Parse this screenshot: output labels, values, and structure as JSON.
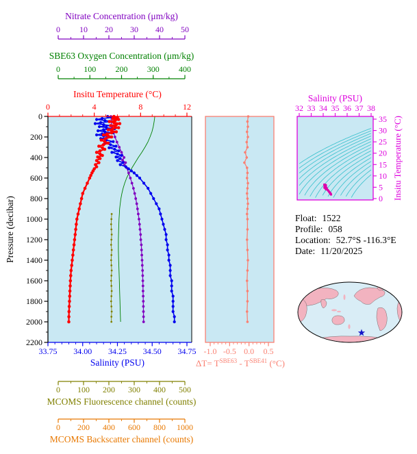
{
  "info": {
    "float_label": "Float:",
    "float_value": "1522",
    "profile_label": "Profile:",
    "profile_value": "058",
    "location_label": "Location:",
    "location_value": "52.7°S -116.3°E",
    "date_label": "Date:",
    "date_value": "11/20/2025"
  },
  "colors": {
    "plot_bg": "#c9e8f3",
    "temperature": "#ff0000",
    "salinity": "#0000ee",
    "nitrate": "#8000c0",
    "oxygen": "#008000",
    "fluorescence": "#808000",
    "backscatter": "#e87800",
    "delta_t": "#fa8072",
    "ts_axis": "#dd00dd",
    "ts_points": "#dd00aa",
    "ts_contours": "#35c0cc",
    "pressure_axis": "#000000",
    "map_land": "#f2b3c0",
    "map_ocean": "#d9edf6",
    "star": "#1515c8"
  },
  "chart_data": [
    {
      "id": "profiles",
      "type": "line",
      "ylabel": "Pressure (decibar)",
      "ylim": [
        0,
        2200
      ],
      "y_ticks": [
        0,
        200,
        400,
        600,
        800,
        1000,
        1200,
        1400,
        1600,
        1800,
        2000,
        2200
      ],
      "axes": [
        {
          "id": "nitrate",
          "label": "Nitrate Concentration (μm/kg)",
          "lim": [
            0,
            50
          ],
          "ticks": [
            0,
            10,
            20,
            30,
            40,
            50
          ],
          "tick_labels": [
            "0",
            "10",
            "20",
            "30",
            "40",
            "50"
          ]
        },
        {
          "id": "oxygen",
          "label": "SBE63 Oxygen Concentration (μm/kg)",
          "lim": [
            0,
            400
          ],
          "ticks": [
            0,
            100,
            200,
            300,
            400
          ],
          "tick_labels": [
            "0",
            "100",
            "200",
            "300",
            "400"
          ]
        },
        {
          "id": "temperature",
          "label": "Insitu Temperature (°C)",
          "lim": [
            0,
            12
          ],
          "ticks": [
            0,
            4,
            8,
            12
          ],
          "tick_labels": [
            "0",
            "4",
            "8",
            "12"
          ]
        },
        {
          "id": "salinity",
          "label": "Salinity (PSU)",
          "lim": [
            33.75,
            34.75
          ],
          "ticks": [
            33.75,
            34,
            34.25,
            34.5,
            34.75
          ],
          "tick_labels": [
            "33.75",
            "34.00",
            "34.25",
            "34.50",
            "34.75"
          ]
        },
        {
          "id": "fluorescence",
          "label": "MCOMS Fluorescence channel (counts)",
          "lim": [
            0,
            500
          ],
          "ticks": [
            0,
            100,
            200,
            300,
            400,
            500
          ],
          "tick_labels": [
            "0",
            "100",
            "200",
            "300",
            "400",
            "500"
          ]
        },
        {
          "id": "backscatter",
          "label": "MCOMS Backscatter channel (counts)",
          "lim": [
            0,
            1000
          ],
          "ticks": [
            0,
            200,
            400,
            600,
            800,
            1000
          ],
          "tick_labels": [
            "0",
            "200",
            "400",
            "600",
            "800",
            "1000"
          ]
        }
      ],
      "series": [
        {
          "name": "temperature",
          "axis": "temperature",
          "pressure": [
            0,
            10,
            20,
            30,
            40,
            50,
            60,
            70,
            80,
            90,
            100,
            110,
            120,
            130,
            140,
            150,
            160,
            170,
            180,
            190,
            200,
            215,
            230,
            245,
            260,
            275,
            290,
            305,
            320,
            335,
            350,
            365,
            380,
            395,
            410,
            430,
            450,
            470,
            490,
            510,
            530,
            550,
            575,
            600,
            650,
            700,
            750,
            800,
            850,
            900,
            950,
            1000,
            1050,
            1100,
            1150,
            1200,
            1250,
            1300,
            1350,
            1400,
            1450,
            1500,
            1550,
            1600,
            1650,
            1700,
            1750,
            1800,
            1850,
            1900,
            1950,
            2000
          ],
          "values": [
            5.7,
            6.0,
            5.6,
            6.1,
            5.8,
            5.3,
            5.7,
            6.2,
            5.9,
            5.4,
            5.8,
            6.1,
            5.6,
            5.2,
            5.5,
            5.9,
            5.5,
            5.1,
            4.8,
            5.2,
            5.5,
            5.0,
            4.6,
            4.9,
            5.2,
            4.8,
            4.4,
            4.7,
            4.9,
            4.5,
            4.2,
            4.5,
            4.7,
            4.3,
            4.5,
            4.2,
            4.4,
            4.1,
            4.2,
            4.0,
            3.9,
            3.8,
            3.7,
            3.6,
            3.4,
            3.2,
            3.0,
            2.9,
            2.8,
            2.7,
            2.6,
            2.5,
            2.45,
            2.4,
            2.35,
            2.3,
            2.25,
            2.2,
            2.15,
            2.1,
            2.05,
            2.0,
            1.97,
            1.94,
            1.92,
            1.9,
            1.88,
            1.86,
            1.84,
            1.82,
            1.81,
            1.8
          ]
        },
        {
          "name": "salinity",
          "axis": "salinity",
          "pressure": [
            0,
            10,
            20,
            30,
            40,
            50,
            60,
            70,
            80,
            90,
            100,
            110,
            120,
            130,
            140,
            150,
            160,
            170,
            180,
            190,
            200,
            215,
            230,
            245,
            260,
            275,
            290,
            305,
            320,
            335,
            350,
            365,
            380,
            395,
            410,
            430,
            450,
            470,
            490,
            510,
            530,
            550,
            575,
            600,
            650,
            700,
            750,
            800,
            850,
            900,
            950,
            1000,
            1050,
            1100,
            1150,
            1200,
            1250,
            1300,
            1350,
            1400,
            1450,
            1500,
            1550,
            1600,
            1650,
            1700,
            1750,
            1800,
            1850,
            1900,
            1950,
            2000
          ],
          "values": [
            34.18,
            34.22,
            34.14,
            34.1,
            34.16,
            34.21,
            34.13,
            34.09,
            34.15,
            34.2,
            34.12,
            34.17,
            34.23,
            34.15,
            34.11,
            34.16,
            34.22,
            34.14,
            34.1,
            34.15,
            34.2,
            34.13,
            34.17,
            34.22,
            34.16,
            34.2,
            34.24,
            34.19,
            34.23,
            34.26,
            34.21,
            34.25,
            34.28,
            34.24,
            34.27,
            34.25,
            34.29,
            34.27,
            34.31,
            34.33,
            34.35,
            34.37,
            34.39,
            34.41,
            34.44,
            34.47,
            34.49,
            34.51,
            34.53,
            34.55,
            34.56,
            34.57,
            34.58,
            34.59,
            34.6,
            34.6,
            34.61,
            34.61,
            34.62,
            34.62,
            34.63,
            34.63,
            34.63,
            34.64,
            34.64,
            34.64,
            34.65,
            34.65,
            34.65,
            34.65,
            34.66,
            34.66
          ]
        },
        {
          "name": "nitrate",
          "axis": "nitrate",
          "pressure": [
            0,
            50,
            100,
            150,
            200,
            250,
            300,
            350,
            400,
            425,
            450,
            475,
            500,
            550,
            600,
            650,
            700,
            750,
            800,
            850,
            900,
            950,
            1000,
            1050,
            1100,
            1150,
            1200,
            1250,
            1300,
            1350,
            1400,
            1450,
            1500,
            1550,
            1600,
            1650,
            1700,
            1750,
            1800,
            1850,
            1900,
            1950,
            2000
          ],
          "values": [
            20.8,
            20.9,
            21.2,
            21.8,
            22.4,
            23.2,
            24.1,
            25.0,
            26.0,
            25.4,
            26.6,
            26.1,
            27.0,
            27.8,
            28.5,
            29.1,
            29.7,
            30.2,
            30.6,
            31.0,
            31.3,
            31.6,
            31.9,
            32.1,
            32.3,
            32.5,
            32.6,
            32.8,
            32.9,
            33.0,
            33.1,
            33.2,
            33.3,
            33.35,
            33.4,
            33.45,
            33.5,
            33.55,
            33.6,
            33.62,
            33.65,
            33.68,
            33.7
          ]
        },
        {
          "name": "oxygen",
          "axis": "oxygen",
          "pressure": [
            0,
            50,
            100,
            150,
            200,
            250,
            300,
            350,
            400,
            450,
            500,
            550,
            600,
            650,
            700,
            750,
            800,
            850,
            900,
            950,
            1000,
            1100,
            1200,
            1300,
            1400,
            1500,
            1600,
            1700,
            1800,
            1900,
            2000
          ],
          "values": [
            305,
            303,
            300,
            296,
            290,
            283,
            274,
            264,
            253,
            243,
            233,
            224,
            216,
            210,
            205,
            201,
            198,
            196,
            194,
            193,
            192,
            191,
            190,
            190,
            191,
            192,
            193,
            194,
            195,
            196,
            197
          ]
        },
        {
          "name": "fluorescence",
          "axis": "fluorescence",
          "pressure": [
            950,
            1000,
            1050,
            1100,
            1150,
            1200,
            1250,
            1300,
            1350,
            1400,
            1450,
            1500,
            1550,
            1600,
            1650,
            1700,
            1750,
            1800,
            1850,
            1900,
            1950,
            2000
          ],
          "values": [
            211,
            210,
            209,
            210,
            211,
            210,
            209,
            211,
            210,
            209,
            210,
            211,
            210,
            209,
            210,
            211,
            210,
            209,
            210,
            211,
            210,
            210
          ]
        }
      ]
    },
    {
      "id": "delta_t",
      "type": "line",
      "xlabel_parts": {
        "p1": "ΔT= T",
        "sup1": "SBE63",
        "p2": " - T",
        "sup2": "SBE41",
        "p3": " (°C)"
      },
      "xlim": [
        -1.0,
        0.5
      ],
      "x_ticks": [
        -1,
        -0.5,
        0,
        0.5
      ],
      "x_tick_labels": [
        "-1.0",
        "-0.5",
        "0.0",
        "0.5"
      ],
      "pressure": [
        0,
        50,
        100,
        150,
        200,
        250,
        300,
        350,
        400,
        450,
        500,
        550,
        600,
        650,
        700,
        750,
        800,
        850,
        900,
        950,
        1000,
        1100,
        1200,
        1300,
        1400,
        1500,
        1600,
        1700,
        1800,
        1900,
        2000
      ],
      "values": [
        -0.02,
        -0.04,
        -0.03,
        -0.05,
        -0.03,
        -0.06,
        -0.04,
        -0.1,
        -0.06,
        -0.12,
        -0.05,
        -0.04,
        -0.05,
        -0.03,
        -0.04,
        -0.05,
        -0.04,
        -0.03,
        -0.04,
        -0.05,
        -0.04,
        -0.04,
        -0.05,
        -0.04,
        -0.03,
        -0.04,
        -0.05,
        -0.04,
        -0.04,
        -0.05,
        -0.04
      ]
    },
    {
      "id": "ts_diagram",
      "type": "scatter",
      "xlabel": "Salinity (PSU)",
      "ylabel": "Insitu Temperature (°C)",
      "xlim": [
        32,
        38
      ],
      "x_ticks": [
        32,
        33,
        34,
        35,
        36,
        37,
        38
      ],
      "ylim": [
        0,
        35
      ],
      "y_ticks": [
        0,
        5,
        10,
        15,
        20,
        25,
        30,
        35
      ],
      "points_source": "salinity and temperature profile series",
      "isopycnal_levels": [
        23.6,
        24,
        24.4,
        24.8,
        25.2,
        25.6,
        26,
        26.4,
        26.8,
        27.2,
        27.6,
        28,
        28.4,
        28.8,
        29.2
      ]
    },
    {
      "id": "location_map",
      "type": "map",
      "marker": "star"
    }
  ]
}
